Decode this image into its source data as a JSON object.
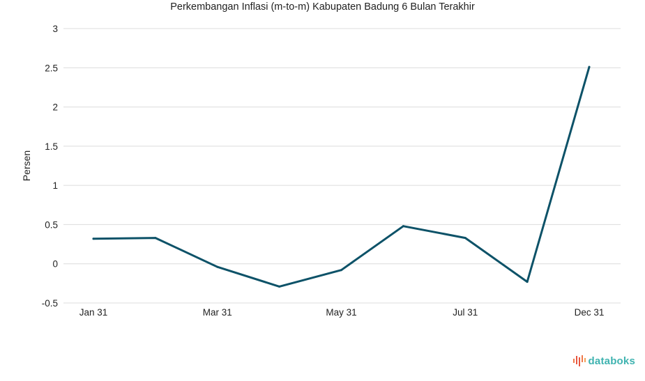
{
  "chart_data": {
    "type": "line",
    "title": "Perkembangan Inflasi (m-to-m) Kabupaten Badung 6 Bulan Terakhir",
    "ylabel": "Persen",
    "xlabel": "",
    "ylim": [
      -0.5,
      3
    ],
    "y_ticks": [
      "3",
      "2.5",
      "2",
      "1.5",
      "1",
      "0.5",
      "0",
      "-0.5"
    ],
    "y_tick_values": [
      3,
      2.5,
      2,
      1.5,
      1,
      0.5,
      0,
      -0.5
    ],
    "x_ticks": [
      {
        "label": "Jan 31",
        "index": 0
      },
      {
        "label": "Mar 31",
        "index": 2
      },
      {
        "label": "May 31",
        "index": 4
      },
      {
        "label": "Jul 31",
        "index": 6
      },
      {
        "label": "Dec 31",
        "index": 8
      }
    ],
    "series": [
      {
        "values": [
          0.32,
          0.33,
          -0.04,
          -0.29,
          -0.08,
          0.48,
          0.33,
          -0.23,
          2.51
        ]
      }
    ],
    "grid": true,
    "line_color": "#0d5268"
  },
  "brand": {
    "name": "databoks",
    "icon": "databoks-bars-icon",
    "color": "#3fb3b0"
  }
}
